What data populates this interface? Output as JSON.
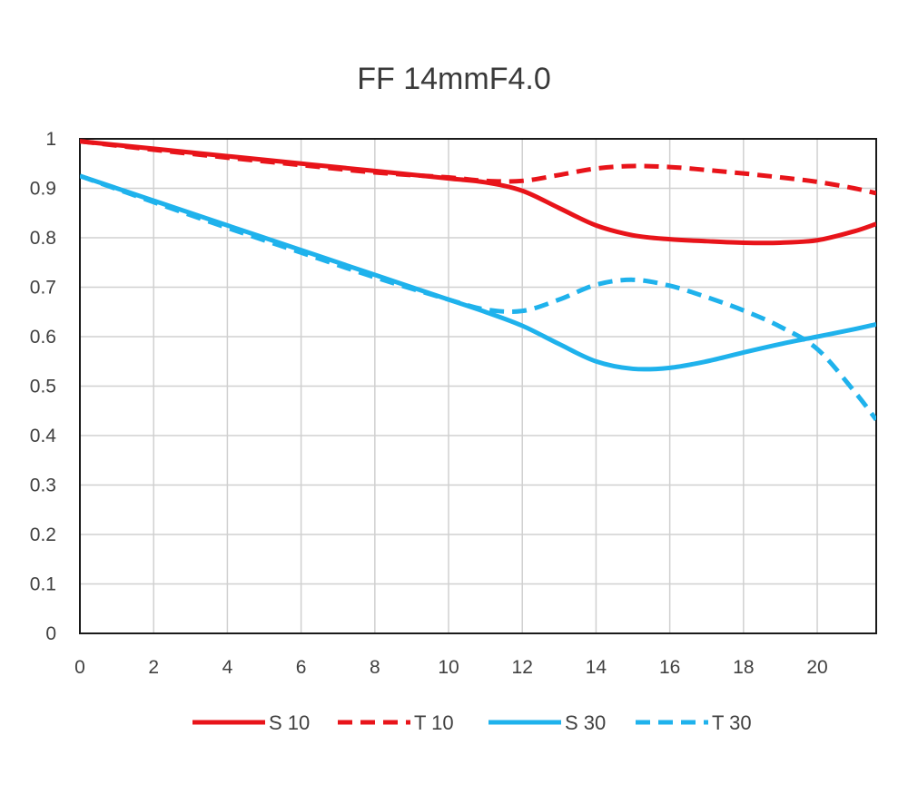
{
  "chart_data": {
    "type": "line",
    "title": "FF 14mmF4.0",
    "xlabel": "",
    "ylabel": "",
    "xlim": [
      0,
      21.6
    ],
    "ylim": [
      0,
      1
    ],
    "x_ticks": [
      "0",
      "2",
      "4",
      "6",
      "8",
      "10",
      "12",
      "14",
      "16",
      "18",
      "20"
    ],
    "y_ticks": [
      "0",
      "0.1",
      "0.2",
      "0.3",
      "0.4",
      "0.5",
      "0.6",
      "0.7",
      "0.8",
      "0.9",
      "1"
    ],
    "grid": true,
    "legend_position": "bottom",
    "series": [
      {
        "name": "S 10",
        "color": "#e8141a",
        "style": "solid",
        "x": [
          0,
          2,
          4,
          6,
          8,
          10,
          11,
          12,
          13,
          14,
          15,
          16,
          17,
          18,
          19,
          20,
          21,
          21.6
        ],
        "y": [
          0.995,
          0.98,
          0.965,
          0.95,
          0.935,
          0.92,
          0.912,
          0.895,
          0.86,
          0.825,
          0.805,
          0.797,
          0.793,
          0.79,
          0.79,
          0.795,
          0.813,
          0.828
        ]
      },
      {
        "name": "T 10",
        "color": "#e8141a",
        "style": "dashed",
        "x": [
          0,
          2,
          4,
          6,
          8,
          10,
          11,
          12,
          13,
          14,
          15,
          16,
          17,
          18,
          19,
          20,
          21,
          21.6
        ],
        "y": [
          0.995,
          0.978,
          0.962,
          0.947,
          0.932,
          0.922,
          0.915,
          0.915,
          0.927,
          0.94,
          0.945,
          0.943,
          0.937,
          0.93,
          0.922,
          0.913,
          0.9,
          0.89
        ]
      },
      {
        "name": "S 30",
        "color": "#1fb2ec",
        "style": "solid",
        "x": [
          0,
          2,
          4,
          6,
          8,
          10,
          11,
          12,
          13,
          14,
          15,
          16,
          17,
          18,
          19,
          20,
          21,
          21.6
        ],
        "y": [
          0.925,
          0.875,
          0.825,
          0.775,
          0.725,
          0.675,
          0.65,
          0.622,
          0.585,
          0.55,
          0.535,
          0.537,
          0.55,
          0.568,
          0.585,
          0.6,
          0.615,
          0.625
        ]
      },
      {
        "name": "T 30",
        "color": "#1fb2ec",
        "style": "dashed",
        "x": [
          0,
          2,
          4,
          6,
          8,
          10,
          11,
          12,
          13,
          14,
          15,
          16,
          17,
          18,
          19,
          20,
          21,
          21.6
        ],
        "y": [
          0.925,
          0.872,
          0.82,
          0.77,
          0.72,
          0.675,
          0.655,
          0.652,
          0.675,
          0.705,
          0.715,
          0.703,
          0.68,
          0.653,
          0.62,
          0.575,
          0.49,
          0.432
        ]
      }
    ]
  }
}
